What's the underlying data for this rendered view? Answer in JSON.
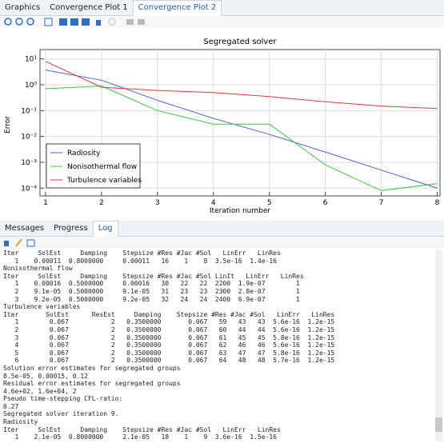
{
  "tabs": [
    "Graphics",
    "Convergence Plot 1",
    "Convergence Plot 2"
  ],
  "chart_data": {
    "type": "line",
    "title": "Segregated solver",
    "xlabel": "Iteration number",
    "ylabel": "Error",
    "x": [
      1,
      2,
      3,
      4,
      5,
      6,
      7,
      8
    ],
    "xlim": [
      0.9,
      8.05
    ],
    "xticks": [
      1,
      2,
      3,
      4,
      5,
      6,
      7,
      8
    ],
    "ylim": [
      5e-05,
      23
    ],
    "log_y": true,
    "grid": true,
    "legend": "lower left",
    "yticks": [
      {
        "value": 0.0001,
        "label": "10⁻⁴"
      },
      {
        "value": 0.001,
        "label": "10⁻³"
      },
      {
        "value": 0.01,
        "label": "10⁻²"
      },
      {
        "value": 0.1,
        "label": "10⁻¹"
      },
      {
        "value": 1,
        "label": "10⁰"
      },
      {
        "value": 10,
        "label": "10¹"
      }
    ],
    "series": [
      {
        "name": "Radiosity",
        "color": "#4a5fd8",
        "values": [
          3.7,
          1.5,
          0.25,
          0.05,
          0.012,
          0.0025,
          0.0005,
          0.0001
        ]
      },
      {
        "name": "Nonisothermal flow",
        "color": "#3cc43c",
        "values": [
          0.7,
          0.9,
          0.1,
          0.03,
          0.03,
          0.0008,
          8e-05,
          0.00015
        ]
      },
      {
        "name": "Turbulence variables",
        "color": "#d83a3a",
        "values": [
          8,
          0.8,
          0.6,
          0.5,
          0.35,
          0.22,
          0.15,
          0.12
        ]
      }
    ]
  },
  "bottom_tabs": [
    "Messages",
    "Progress",
    "Log"
  ],
  "log": [
    "Iter     SolEst     Damping    Stepsize #Res #Jac #Sol   LinErr   LinRes",
    "   1    0.00011  0.8000000     0.00011   16    1    8  3.5e-16  1.4e-16",
    "Nonisothermal flow",
    "Iter     SolEst     Damping    Stepsize #Res #Jac #Sol LinIt   LinErr   LinRes",
    "   1    0.00016  0.5000000     0.00016   30   22   22  2200  1.9e-07        1",
    "   2    9.1e-05  0.5000000     9.1e-05   31   23   23  2300  2.8e-07        1",
    "   3    9.2e-05  0.5000000     9.2e-05   32   24   24  2400  6.9e-07        1",
    "Turbulence variables",
    "Iter       SolEst      ResEst     Damping    Stepsize #Res #Jac #Sol   LinErr   LinRes",
    "   1        0.067           2   0.3500000       0.067   59   43   43  5.6e-16  1.2e-15",
    "   2        0.067           2   0.3500000       0.067   60   44   44  5.6e-16  1.2e-15",
    "   3        0.067           2   0.3500000       0.067   61   45   45  5.8e-16  1.2e-15",
    "   4        0.067           2   0.3500000       0.067   62   46   46  5.6e-16  1.2e-15",
    "   5        0.067           2   0.3500000       0.067   63   47   47  5.8e-16  1.2e-15",
    "   6        0.067           2   0.3500000       0.067   64   48   48  5.7e-16  1.2e-15",
    "Solution error estimates for segregated groups",
    "8.5e-05, 0.00015, 0.12",
    "Residual error estimates for segregated groups",
    "4.6e+02, 1.6e+04, 2",
    "Pseudo time-stepping CFL-ratio:",
    "0.27",
    "Segregated solver iteration 9.",
    "Radiosity",
    "Iter     SolEst     Damping    Stepsize #Res #Jac #Sol   LinErr   LinRes",
    "   1    2.1e-05  0.8000000     2.1e-05   18    1    9  3.6e-16  1.5e-16"
  ]
}
